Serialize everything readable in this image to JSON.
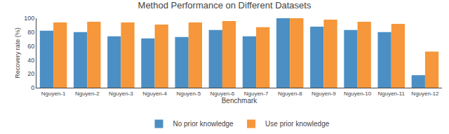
{
  "chart_data": {
    "type": "bar",
    "title": "Method Performance on Different Datasets",
    "xlabel": "Benchmark",
    "ylabel": "Recovery rate (%)",
    "categories": [
      "Nguyen-1",
      "Nguyen-2",
      "Nguyen-3",
      "Nguyen-4",
      "Nguyen-5",
      "Nguyen-6",
      "Nguyen-7",
      "Nguyen-8",
      "Nguyen-9",
      "Nguyen-10",
      "Nguyen-11",
      "Nguyen-12"
    ],
    "series": [
      {
        "name": "No prior knowledge",
        "color": "#4c8fc4",
        "values": [
          82,
          80,
          74,
          71,
          73,
          83,
          74,
          100,
          88,
          83,
          80,
          18
        ]
      },
      {
        "name": "Use prior knowledge",
        "color": "#f5973a",
        "values": [
          94,
          95,
          94,
          91,
          94,
          96,
          87,
          100,
          98,
          95,
          92,
          52
        ]
      }
    ],
    "ylim": [
      0,
      100
    ],
    "yticks": [
      0,
      20,
      40,
      60,
      80,
      100
    ],
    "grid": false,
    "legend": "bottom"
  }
}
